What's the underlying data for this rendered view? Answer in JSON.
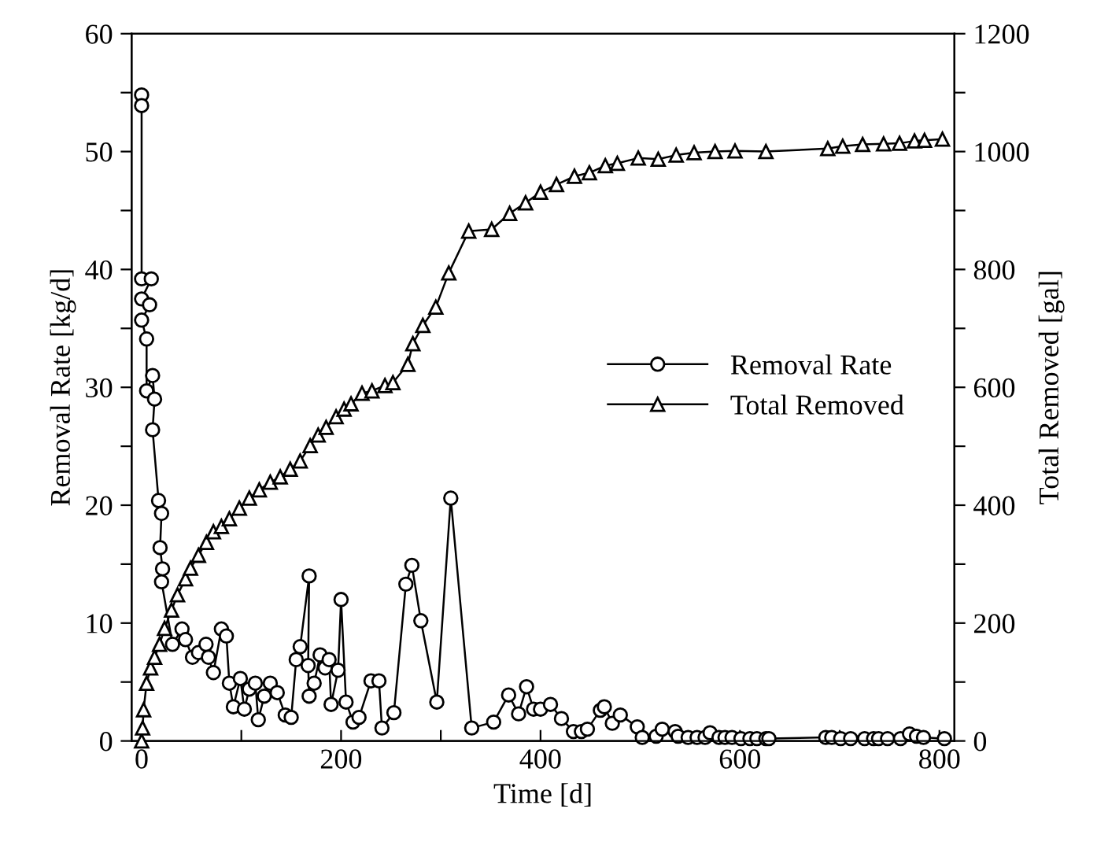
{
  "chart_data": {
    "type": "line",
    "xlabel": "Time [d]",
    "ylabel": "Removal Rate [kg/d]",
    "y2label": "Total Removed [gal]",
    "xlim": [
      -10,
      815
    ],
    "xticks": [
      0,
      {
        "value": 100,
        "label": null
      },
      200,
      {
        "value": 300,
        "label": null
      },
      400,
      {
        "value": 500,
        "label": null
      },
      600,
      {
        "value": 700,
        "label": null
      },
      800
    ],
    "ylim": [
      0,
      60
    ],
    "yticks": [
      0,
      {
        "value": 5,
        "label": null
      },
      10,
      {
        "value": 15,
        "label": null
      },
      20,
      {
        "value": 25,
        "label": null
      },
      30,
      {
        "value": 35,
        "label": null
      },
      40,
      {
        "value": 45,
        "label": null
      },
      50,
      {
        "value": 55,
        "label": null
      },
      60
    ],
    "y2lim": [
      0,
      1200
    ],
    "y2ticks": [
      0,
      {
        "value": 100,
        "label": null
      },
      200,
      {
        "value": 300,
        "label": null
      },
      400,
      {
        "value": 500,
        "label": null
      },
      600,
      {
        "value": 700,
        "label": null
      },
      800,
      {
        "value": 900,
        "label": null
      },
      1000,
      {
        "value": 1100,
        "label": null
      },
      1200
    ],
    "grid": false,
    "legend": "right",
    "line_style": "solid",
    "series": [
      {
        "name": "Removal Rate",
        "color": "#000000",
        "marker": "circle",
        "x": [
          0,
          0,
          0,
          9.7,
          0,
          8,
          0,
          5,
          5,
          11,
          13,
          11,
          17,
          20,
          18.5,
          21,
          20,
          31,
          40.5,
          44,
          51,
          57,
          64.6,
          67,
          72,
          80,
          85,
          88,
          92,
          99,
          103,
          108,
          114,
          117,
          123,
          129,
          136,
          144,
          150,
          155,
          159,
          168,
          167,
          168,
          173,
          179,
          184,
          188,
          190,
          197,
          200,
          205,
          212,
          218,
          230,
          238,
          241,
          253,
          265,
          271,
          280,
          296,
          310,
          331,
          353,
          368,
          378,
          386,
          393,
          400,
          410,
          421,
          433,
          441,
          447,
          460,
          464,
          472,
          480,
          497,
          502,
          516,
          522,
          535,
          538,
          548,
          557,
          565,
          570,
          579,
          585,
          592,
          601,
          610,
          617,
          626,
          629,
          686,
          692,
          701,
          711,
          725,
          734,
          739,
          748,
          761,
          770,
          777,
          784,
          805
        ],
        "values": [
          54.8,
          53.9,
          39.2,
          39.2,
          37.5,
          37.0,
          35.7,
          34.1,
          29.7,
          31.0,
          29.0,
          26.4,
          20.4,
          19.3,
          16.4,
          14.6,
          13.5,
          8.2,
          9.5,
          8.6,
          7.1,
          7.5,
          8.2,
          7.1,
          5.8,
          9.5,
          8.9,
          4.9,
          2.9,
          5.3,
          2.7,
          4.4,
          4.9,
          1.8,
          3.8,
          4.9,
          4.1,
          2.2,
          2.0,
          6.9,
          8.0,
          14.0,
          6.4,
          3.8,
          4.9,
          7.3,
          6.2,
          6.9,
          3.1,
          6.0,
          12.0,
          3.3,
          1.6,
          2.0,
          5.1,
          5.1,
          1.1,
          2.4,
          13.3,
          14.9,
          10.2,
          3.3,
          20.6,
          1.1,
          1.6,
          3.9,
          2.3,
          4.6,
          2.7,
          2.7,
          3.1,
          1.9,
          0.8,
          0.8,
          1.0,
          2.6,
          2.9,
          1.5,
          2.2,
          1.2,
          0.3,
          0.4,
          1.0,
          0.8,
          0.4,
          0.3,
          0.3,
          0.3,
          0.7,
          0.3,
          0.3,
          0.3,
          0.2,
          0.2,
          0.2,
          0.2,
          0.2,
          0.3,
          0.3,
          0.2,
          0.2,
          0.2,
          0.2,
          0.2,
          0.2,
          0.2,
          0.6,
          0.4,
          0.3,
          0.2
        ]
      },
      {
        "name": "Total Removed",
        "color": "#000000",
        "marker": "triangle",
        "axis": "y2",
        "x": [
          0,
          1,
          2,
          5,
          9,
          13,
          18,
          23,
          30,
          36,
          44,
          49,
          57,
          65,
          72,
          80,
          88,
          98,
          108,
          118,
          129,
          139,
          149,
          159,
          169,
          177,
          185,
          195,
          203,
          210,
          221,
          231,
          244,
          252,
          267,
          272,
          282,
          295,
          308,
          328,
          351,
          369,
          385,
          400,
          416,
          434,
          449,
          465,
          477,
          498,
          518,
          536,
          554,
          575,
          595,
          626,
          688,
          703,
          723,
          744,
          760,
          775,
          785,
          803
        ],
        "values": [
          0,
          22,
          53,
          98,
          124,
          142,
          164,
          191,
          222,
          248,
          275,
          293,
          315,
          337,
          355,
          364,
          377,
          395,
          412,
          426,
          439,
          448,
          461,
          475,
          501,
          519,
          532,
          550,
          563,
          572,
          590,
          594,
          603,
          608,
          639,
          674,
          705,
          736,
          794,
          865,
          868,
          895,
          913,
          931,
          944,
          958,
          964,
          976,
          980,
          989,
          987,
          994,
          998,
          1000,
          1001,
          1000,
          1005,
          1009,
          1012,
          1013,
          1014,
          1018,
          1019,
          1021
        ]
      }
    ]
  }
}
